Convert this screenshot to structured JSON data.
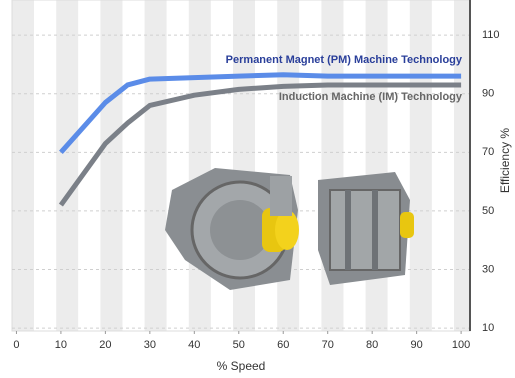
{
  "chart_data": {
    "type": "line",
    "x_label": "% Speed",
    "y_label": "Efficiency %",
    "y_axis_side": "right",
    "x": [
      10,
      20,
      25,
      30,
      40,
      50,
      60,
      70,
      80,
      90,
      100
    ],
    "series": [
      {
        "name": "Permanent Magnet (PM) Machine Technology",
        "color": "#5b8ce8",
        "values": [
          70,
          87,
          93,
          95,
          95.5,
          96,
          96.5,
          96,
          96,
          96,
          96
        ]
      },
      {
        "name": "Induction Machine (IM) Technology",
        "color": "#7b8088",
        "values": [
          52,
          73,
          80,
          86,
          89.5,
          91.5,
          92.5,
          93,
          93,
          93,
          93
        ]
      }
    ],
    "xlim": [
      -1,
      102
    ],
    "xticks": [
      0,
      10,
      20,
      30,
      40,
      50,
      60,
      70,
      80,
      90,
      100
    ],
    "ylim": [
      9,
      122
    ],
    "yticks": [
      10,
      30,
      50,
      70,
      90,
      110
    ]
  }
}
